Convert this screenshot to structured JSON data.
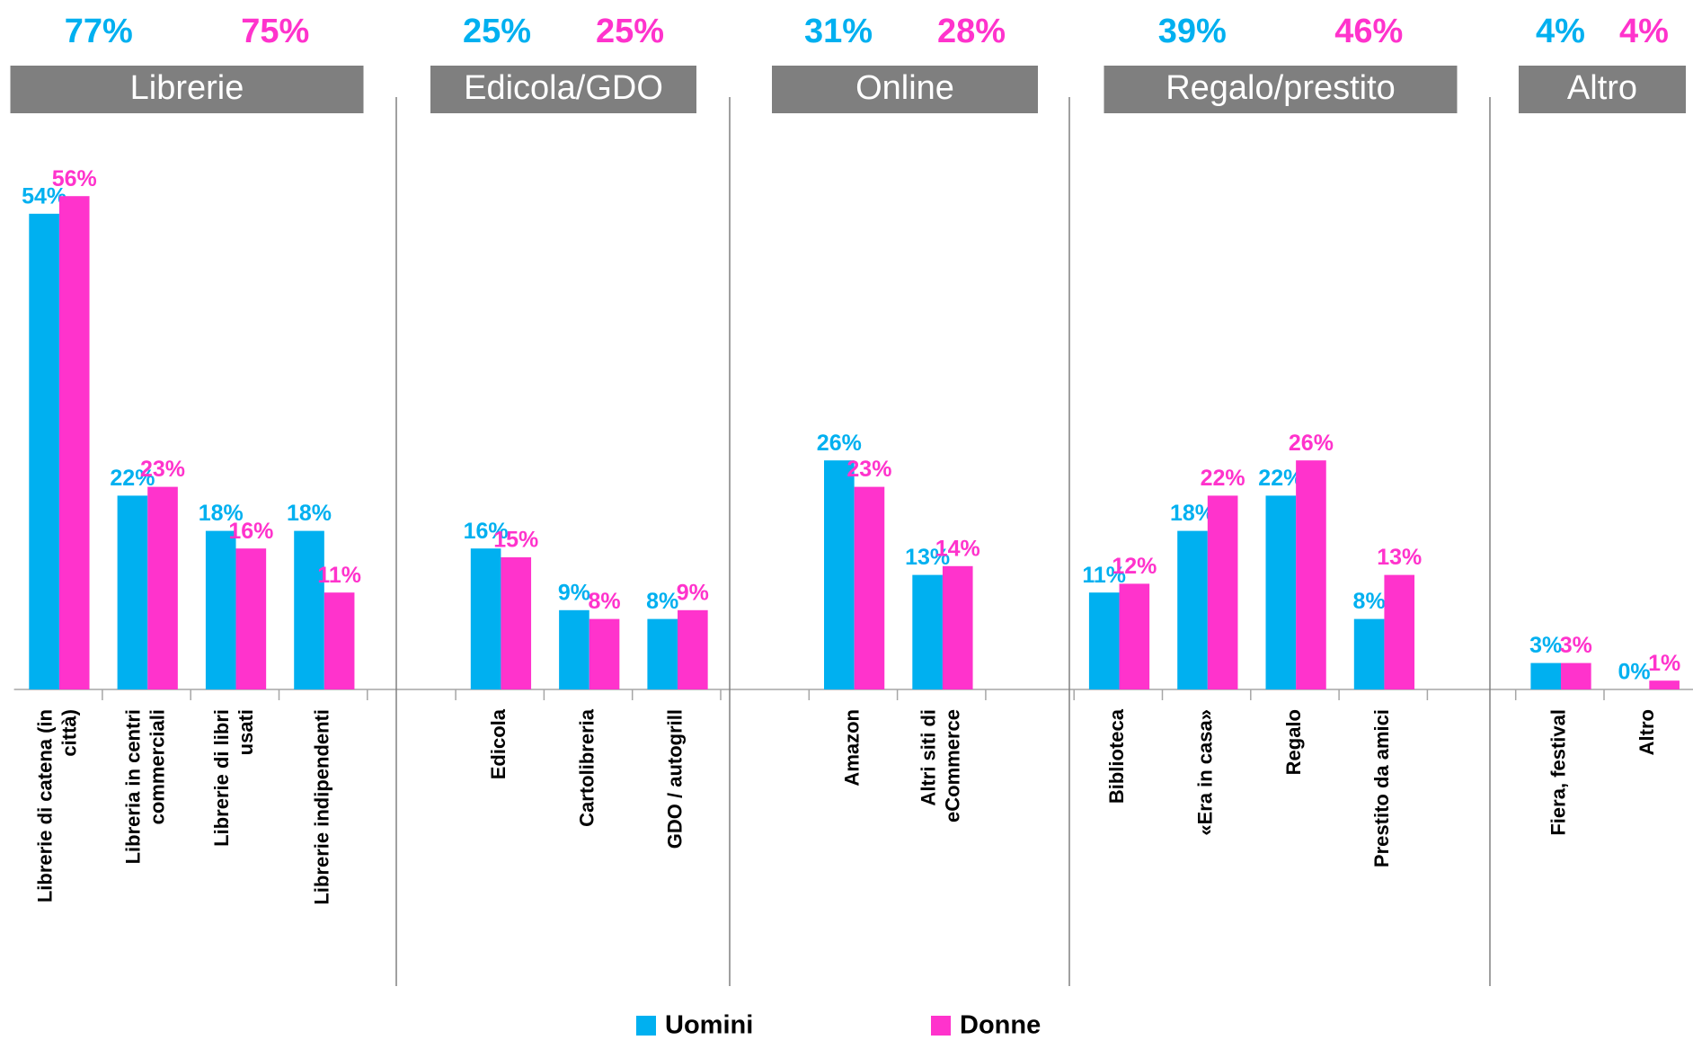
{
  "chart_data": {
    "type": "bar",
    "categories": [
      "Librerie di catena (in città)",
      "Libreria in centri commerciali",
      "Librerie di libri usati",
      "Librerie indipendenti",
      null,
      "Edicola",
      "Cartolibreria",
      "GDO / autogrill",
      null,
      "Amazon",
      "Altri siti di eCommerce",
      null,
      "Biblioteca",
      "«Era in casa»",
      "Regalo",
      "Prestito da amici",
      null,
      "Fiera, festival",
      "Altro"
    ],
    "series": [
      {
        "name": "Uomini",
        "color": "#00b0f0",
        "values": [
          54,
          22,
          18,
          18,
          null,
          16,
          9,
          8,
          null,
          26,
          13,
          null,
          11,
          18,
          22,
          8,
          null,
          3,
          0
        ],
        "value_labels": [
          "54%",
          "22%",
          "18%",
          "18%",
          null,
          "16%",
          "9%",
          "8%",
          null,
          "26%",
          "13%",
          null,
          "11%",
          "18%",
          "22%",
          "8%",
          null,
          "3%",
          "0%"
        ]
      },
      {
        "name": "Donne",
        "color": "#ff33cc",
        "values": [
          56,
          23,
          16,
          11,
          null,
          15,
          8,
          9,
          null,
          23,
          14,
          null,
          12,
          22,
          26,
          13,
          null,
          3,
          1
        ],
        "value_labels": [
          "56%",
          "23%",
          "16%",
          "11%",
          null,
          "15%",
          "8%",
          "9%",
          null,
          "23%",
          "14%",
          null,
          "12%",
          "22%",
          "26%",
          "13%",
          null,
          "3%",
          "1%"
        ]
      }
    ],
    "groups": [
      {
        "label": "Librerie",
        "totals": [
          77,
          75
        ],
        "totals_labels": [
          "77%",
          "75%"
        ]
      },
      {
        "label": "Edicola/GDO",
        "totals": [
          25,
          25
        ],
        "totals_labels": [
          "25%",
          "25%"
        ]
      },
      {
        "label": "Online",
        "totals": [
          31,
          28
        ],
        "totals_labels": [
          "31%",
          "28%"
        ]
      },
      {
        "label": "Regalo/prestito",
        "totals": [
          39,
          46
        ],
        "totals_labels": [
          "39%",
          "46%"
        ]
      },
      {
        "label": "Altro",
        "totals": [
          4,
          4
        ],
        "totals_labels": [
          "4%",
          "4%"
        ]
      }
    ],
    "ylim": [
      0,
      60
    ]
  }
}
